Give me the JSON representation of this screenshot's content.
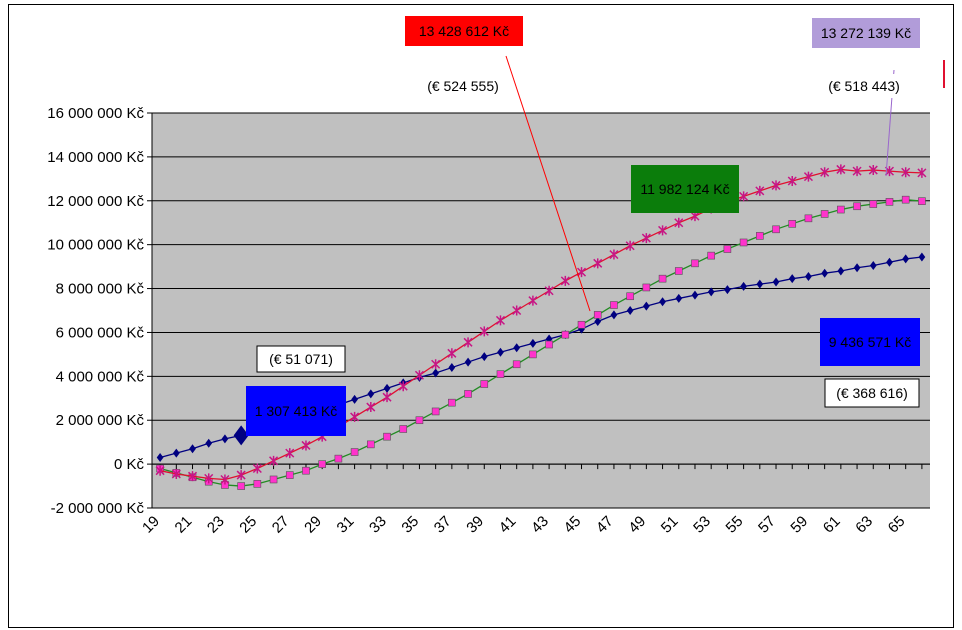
{
  "chart_data": {
    "type": "line",
    "x": [
      19,
      20,
      21,
      22,
      23,
      24,
      25,
      26,
      27,
      28,
      29,
      30,
      31,
      32,
      33,
      34,
      35,
      36,
      37,
      38,
      39,
      40,
      41,
      42,
      43,
      44,
      45,
      46,
      47,
      48,
      49,
      50,
      51,
      52,
      53,
      54,
      55,
      56,
      57,
      58,
      59,
      60,
      61,
      62,
      63,
      64,
      65,
      66
    ],
    "x_tick_labels": [
      "19",
      "21",
      "23",
      "25",
      "27",
      "29",
      "31",
      "33",
      "35",
      "37",
      "39",
      "41",
      "43",
      "45",
      "47",
      "49",
      "51",
      "53",
      "55",
      "57",
      "59",
      "61",
      "63",
      "65"
    ],
    "ylim": [
      -2000000,
      16000000
    ],
    "y_ticks": [
      -2000000,
      0,
      2000000,
      4000000,
      6000000,
      8000000,
      10000000,
      12000000,
      14000000,
      16000000
    ],
    "y_tick_labels": [
      "-2 000 000 Kč",
      "0 Kč",
      "2 000 000 Kč",
      "4 000 000 Kč",
      "6 000 000 Kč",
      "8 000 000 Kč",
      "10 000 000 Kč",
      "12 000 000 Kč",
      "14 000 000 Kč",
      "16 000 000 Kč"
    ],
    "grid": true,
    "plot_background": "#c0c0c0",
    "series": [
      {
        "color": "#000080",
        "marker": "diamond",
        "values": [
          300000,
          500000,
          700000,
          950000,
          1150000,
          1307413,
          1600000,
          1800000,
          2000000,
          2200000,
          2450000,
          2700000,
          2950000,
          3200000,
          3450000,
          3700000,
          3950000,
          4150000,
          4400000,
          4650000,
          4900000,
          5100000,
          5300000,
          5500000,
          5700000,
          5900000,
          6150000,
          6500000,
          6800000,
          7000000,
          7200000,
          7400000,
          7550000,
          7700000,
          7850000,
          7950000,
          8100000,
          8200000,
          8300000,
          8450000,
          8550000,
          8700000,
          8800000,
          8950000,
          9050000,
          9200000,
          9350000,
          9436571
        ]
      },
      {
        "color": "#228b22",
        "marker": "square",
        "values": [
          -200000,
          -400000,
          -600000,
          -800000,
          -950000,
          -1000000,
          -900000,
          -700000,
          -500000,
          -300000,
          0,
          250000,
          550000,
          900000,
          1250000,
          1600000,
          2000000,
          2400000,
          2800000,
          3200000,
          3650000,
          4100000,
          4550000,
          5000000,
          5450000,
          5900000,
          6350000,
          6800000,
          7250000,
          7650000,
          8050000,
          8450000,
          8800000,
          9150000,
          9500000,
          9800000,
          10100000,
          10400000,
          10700000,
          10950000,
          11200000,
          11400000,
          11600000,
          11750000,
          11850000,
          11950000,
          12050000,
          11982124
        ]
      },
      {
        "color": "#e01030",
        "marker": "star",
        "values": [
          -300000,
          -450000,
          -550000,
          -650000,
          -700000,
          -500000,
          -200000,
          150000,
          500000,
          850000,
          1250000,
          1700000,
          2150000,
          2600000,
          3050000,
          3550000,
          4050000,
          4550000,
          5050000,
          5550000,
          6050000,
          6550000,
          7000000,
          7450000,
          7900000,
          8350000,
          8750000,
          9150000,
          9550000,
          9950000,
          10300000,
          10650000,
          11000000,
          11300000,
          11650000,
          11950000,
          12200000,
          12450000,
          12700000,
          12900000,
          13100000,
          13300000,
          13428612,
          13350000,
          13400000,
          13350000,
          13300000,
          13272139
        ]
      }
    ],
    "annotations": [
      {
        "text": "13 428  612 Kč",
        "bg": "#ff0000",
        "fg": "#000000"
      },
      {
        "text": "(€ 524 555)",
        "bg": "#ffffff",
        "fg": "#000000"
      },
      {
        "text": "13 272 139 Kč",
        "bg": "#b19cd9",
        "fg": "#000000"
      },
      {
        "text": "(€ 518 443)",
        "bg": "#ffffff",
        "fg": "#000000"
      },
      {
        "text": "11 982 124 Kč",
        "bg": "#0b7d0b",
        "fg": "#000000"
      },
      {
        "text": "9 436 571 Kč",
        "bg": "#0000ff",
        "fg": "#000000"
      },
      {
        "text": "(€ 368 616)",
        "bg": "#ffffff",
        "fg": "#000000"
      },
      {
        "text": "(€ 51 071)",
        "bg": "#ffffff",
        "fg": "#000000"
      },
      {
        "text": "1 307 413 Kč",
        "bg": "#0000ff",
        "fg": "#000000"
      }
    ],
    "legend_marker_color": "#e01030"
  }
}
